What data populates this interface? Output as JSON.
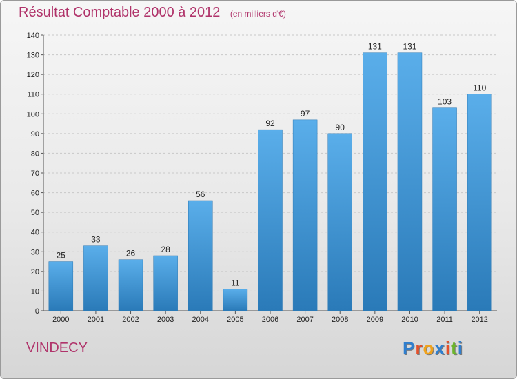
{
  "title": "Résultat Comptable 2000 à 2012",
  "subtitle": "(en milliers d'€)",
  "commune": "VINDECY",
  "logo": {
    "text": "Proxiti",
    "colors": [
      "#2f7fcf",
      "#e6502a",
      "#f0a21c",
      "#2f7fcf",
      "#e6502a",
      "#6bb52c",
      "#2f7fcf"
    ]
  },
  "colors": {
    "accent": "#b0336a",
    "bar_light": "#5aaeea",
    "bar_dark": "#2a7ab8"
  },
  "chart_data": {
    "type": "bar",
    "categories": [
      "2000",
      "2001",
      "2002",
      "2003",
      "2004",
      "2005",
      "2006",
      "2007",
      "2008",
      "2009",
      "2010",
      "2011",
      "2012"
    ],
    "values": [
      25,
      33,
      26,
      28,
      56,
      11,
      92,
      97,
      90,
      131,
      131,
      103,
      110
    ],
    "ylim": [
      0,
      140
    ],
    "yticks": [
      0,
      10,
      20,
      30,
      40,
      50,
      60,
      70,
      80,
      90,
      100,
      110,
      120,
      130,
      140
    ],
    "grid": true
  }
}
